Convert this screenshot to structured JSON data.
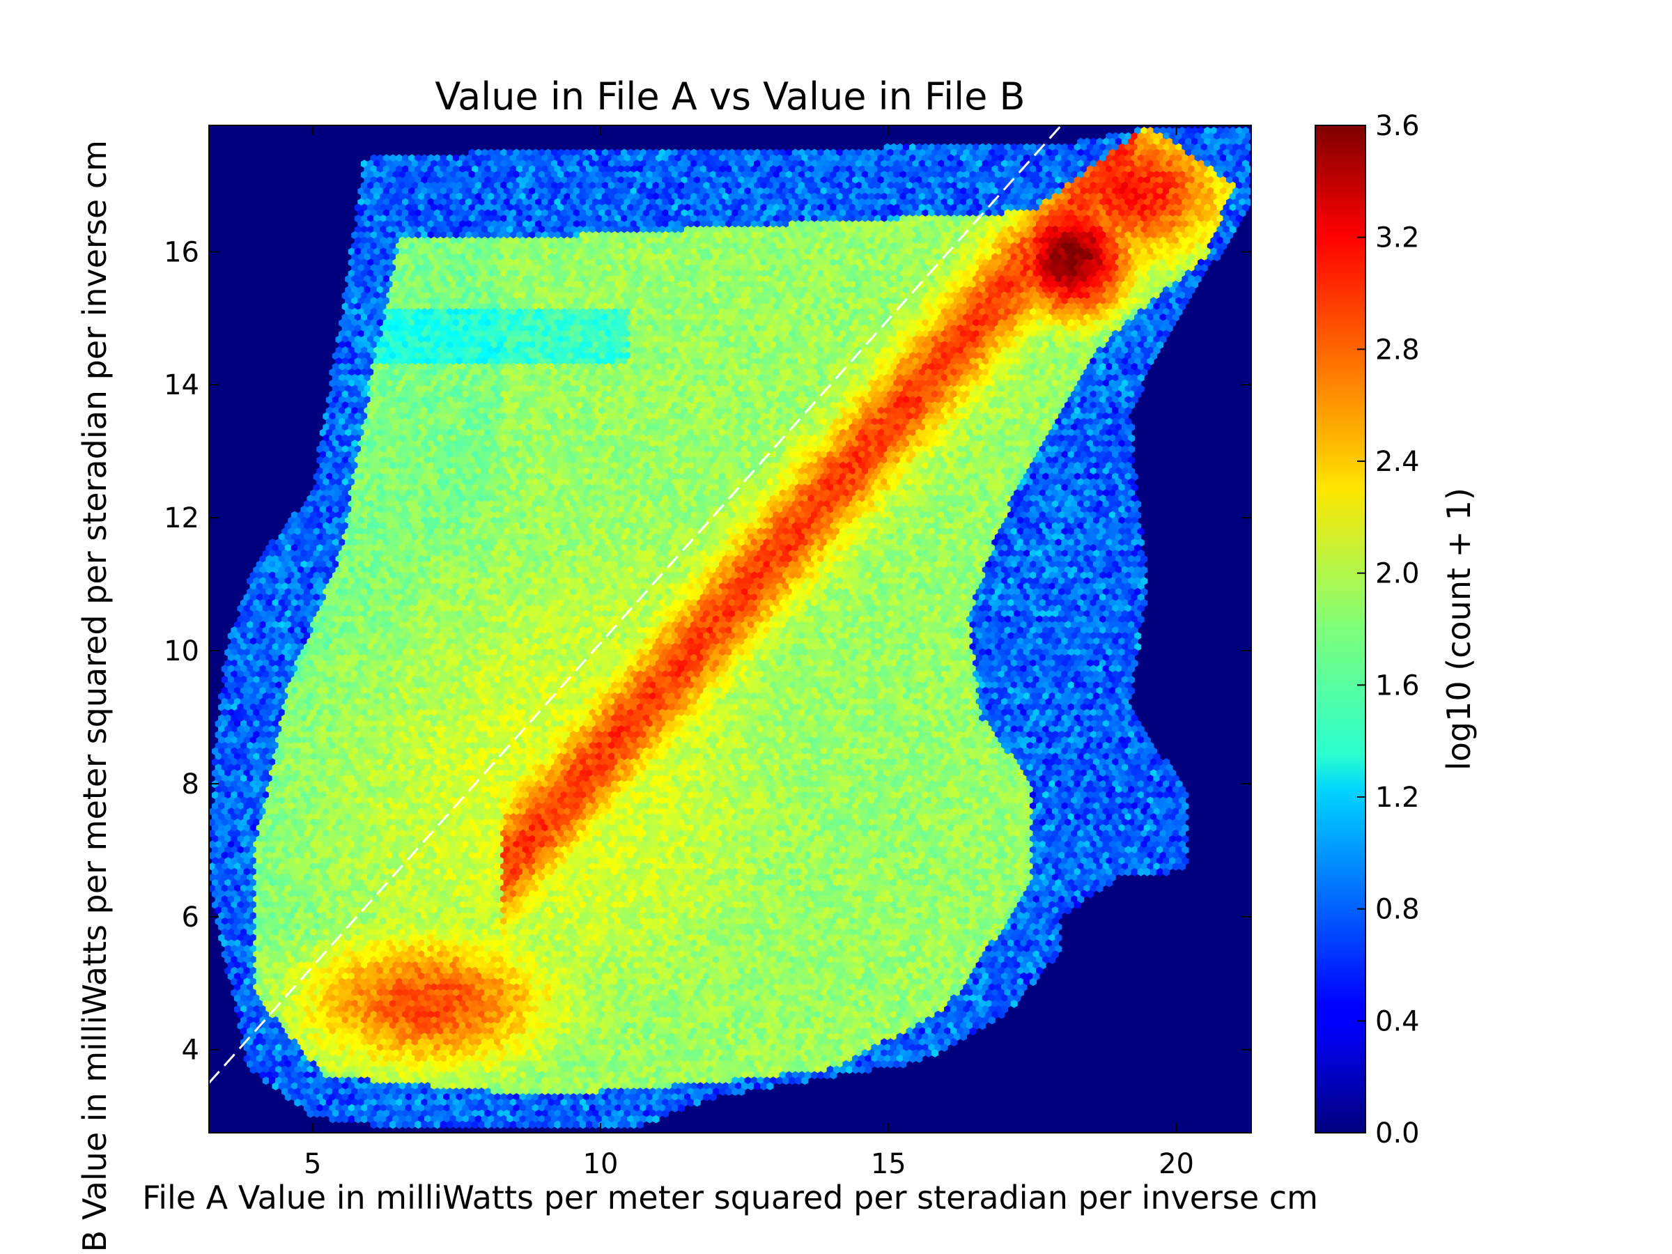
{
  "chart_data": {
    "type": "heatmap",
    "subtype": "hexbin",
    "title": "Value in File A vs Value in File B",
    "xlabel": "File A Value in milliWatts per meter squared per steradian per inverse cm",
    "ylabel": "File B Value in milliWatts per meter squared per steradian per inverse cm",
    "xlim": [
      3.2,
      21.3
    ],
    "ylim": [
      2.75,
      17.9
    ],
    "xticks": [
      5,
      10,
      15,
      20
    ],
    "yticks": [
      4,
      6,
      8,
      10,
      12,
      14,
      16
    ],
    "xtick_labels": [
      "5",
      "10",
      "15",
      "20"
    ],
    "ytick_labels": [
      "4",
      "6",
      "8",
      "10",
      "12",
      "14",
      "16"
    ],
    "colormap": "jet",
    "background_color": "#00007f",
    "colorbar": {
      "label": "log10 (count + 1)",
      "range": [
        0.0,
        3.6
      ],
      "ticks": [
        0.0,
        0.4,
        0.8,
        1.2,
        1.6,
        2.0,
        2.4,
        2.8,
        3.2,
        3.6
      ],
      "tick_labels": [
        "0.0",
        "0.4",
        "0.8",
        "1.2",
        "1.6",
        "2.0",
        "2.4",
        "2.8",
        "3.2",
        "3.6"
      ]
    },
    "reference_line": {
      "style": "dashed",
      "color": "#ffffff",
      "from": [
        3.2,
        3.5
      ],
      "to": [
        18,
        17.9
      ]
    },
    "density_features": [
      {
        "region": "peak near x=18.2, y=15.9",
        "log10_count": 3.6
      },
      {
        "region": "ridge along y = x - 1.6 from x=8.5 to x=19",
        "log10_count": 3.0
      },
      {
        "region": "cluster near x=7, y=4.7",
        "log10_count": 2.9
      },
      {
        "region": "broad plateau between x=4 and x=17",
        "log10_count": 2.0
      },
      {
        "region": "outer fringe",
        "log10_count": 0.6
      }
    ],
    "grid": false
  }
}
